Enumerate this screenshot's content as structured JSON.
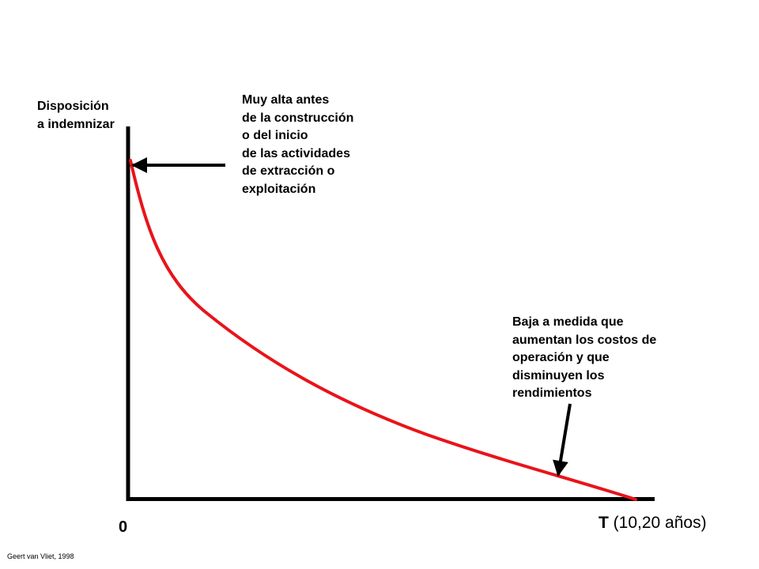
{
  "y_axis_label": [
    "Disposición",
    "a indemnizar"
  ],
  "annotation_top": [
    "Muy alta antes",
    "de la construcción",
    "o del inicio",
    "de las actividades",
    "de extracción o",
    "exploitación"
  ],
  "annotation_bottom": [
    "Baja a medida que",
    "aumentan los costos de",
    "operación y que",
    "disminuyen los",
    "rendimientos"
  ],
  "origin_label": "0",
  "x_axis_label": {
    "letter": "T",
    "rest": " (10,20 años)"
  },
  "credit": "Geert van Vliet, 1998",
  "colors": {
    "curve": "#e8141a",
    "axes": "#000000",
    "arrows": "#000000"
  }
}
